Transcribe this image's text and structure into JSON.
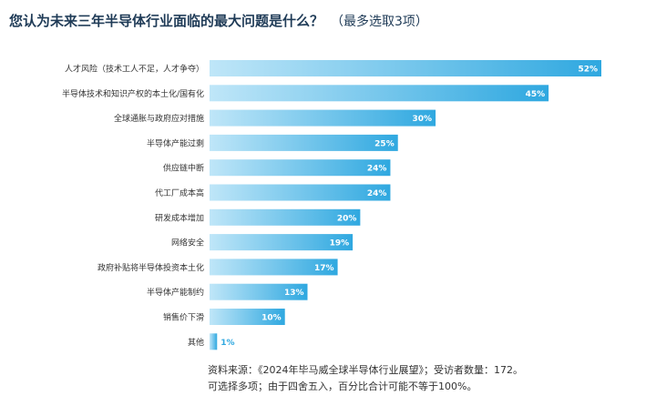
{
  "title": {
    "main": "您认为未来三年半导体行业面临的最大问题是什么？",
    "sub": "（最多选取3项）"
  },
  "chart_data": {
    "type": "bar",
    "orientation": "horizontal",
    "categories": [
      "人才风险（技术工人不足，人才争夺）",
      "半导体技术和知识产权的本土化/国有化",
      "全球通胀与政府应对措施",
      "半导体产能过剩",
      "供应链中断",
      "代工厂成本高",
      "研发成本增加",
      "网络安全",
      "政府补贴将半导体投资本土化",
      "半导体产能制约",
      "销售价下滑",
      "其他"
    ],
    "values": [
      52,
      45,
      30,
      25,
      24,
      24,
      20,
      19,
      17,
      13,
      10,
      1
    ],
    "value_labels": [
      "52%",
      "45%",
      "30%",
      "25%",
      "24%",
      "24%",
      "20%",
      "19%",
      "17%",
      "13%",
      "10%",
      "1%"
    ],
    "xlim": [
      0,
      52
    ],
    "grid": false,
    "colors": {
      "bar_start": "#bfe6f8",
      "bar_end": "#2fa8e0",
      "label": "#ffffff"
    }
  },
  "footnote": {
    "line1": "资料来源：《2024年毕马威全球半导体行业展望》；受访者数量：172。",
    "line2": "可选择多项；由于四舍五入，百分比合计可能不等于100%。"
  }
}
